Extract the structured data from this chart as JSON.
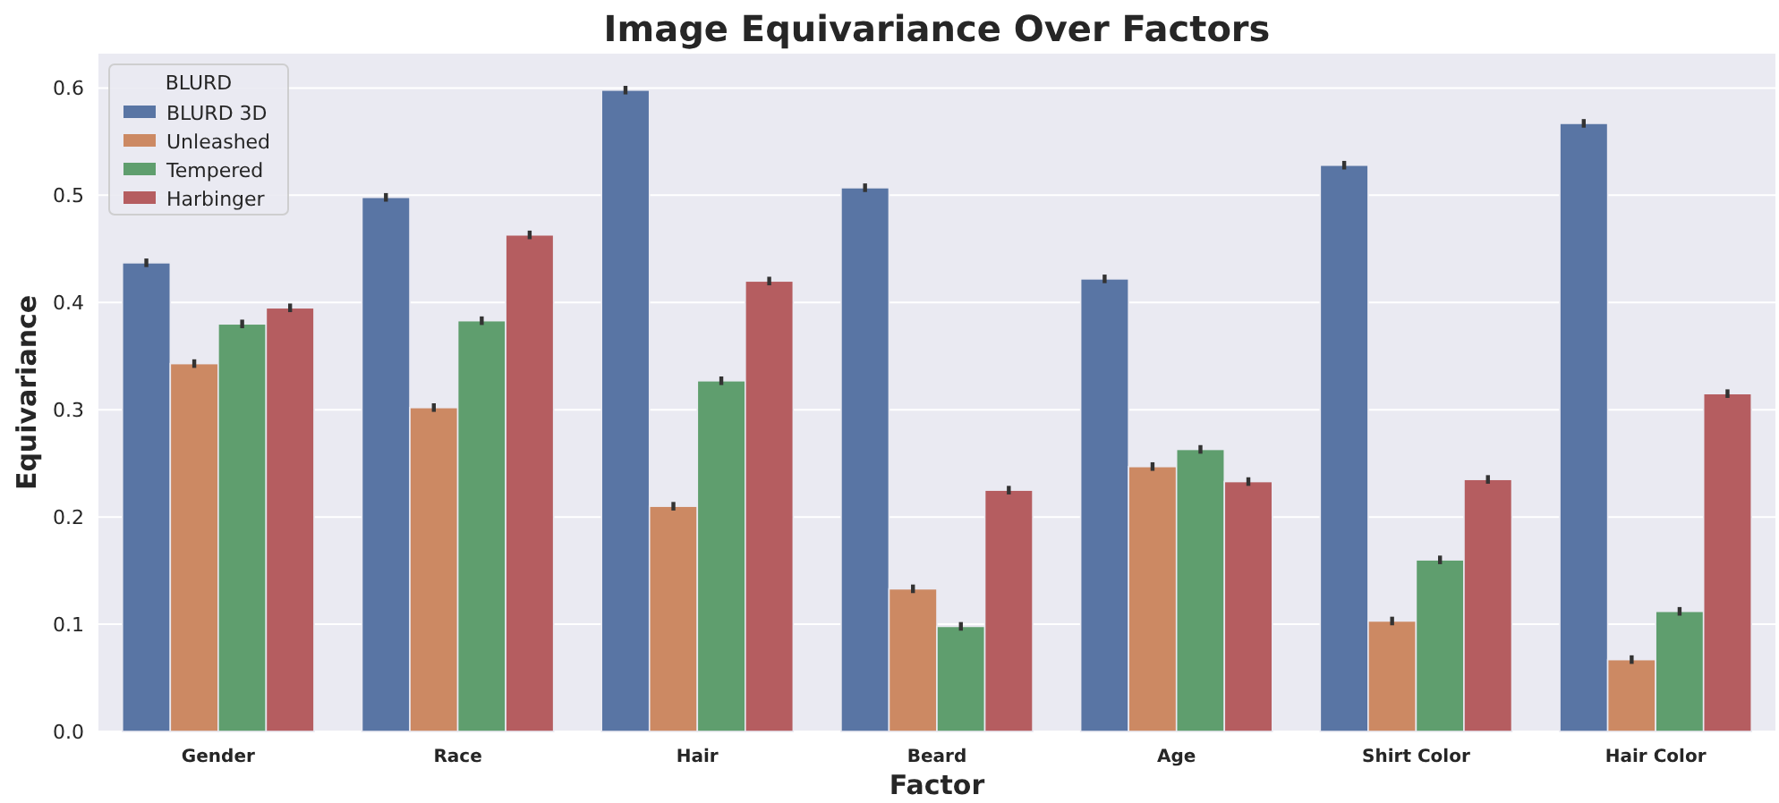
{
  "chart_data": {
    "type": "bar",
    "title": "Image Equivariance Over Factors",
    "xlabel": "Factor",
    "ylabel": "Equivariance",
    "legend_title": "BLURD",
    "categories": [
      "Gender",
      "Race",
      "Hair",
      "Beard",
      "Age",
      "Shirt Color",
      "Hair Color"
    ],
    "series": [
      {
        "name": "BLURD 3D",
        "color": "#5975a4",
        "values": [
          0.437,
          0.498,
          0.598,
          0.507,
          0.422,
          0.528,
          0.567
        ],
        "errors": [
          0.004,
          0.004,
          0.004,
          0.004,
          0.004,
          0.004,
          0.004
        ]
      },
      {
        "name": "Unleashed",
        "color": "#cc8963",
        "values": [
          0.343,
          0.302,
          0.21,
          0.133,
          0.247,
          0.103,
          0.067
        ],
        "errors": [
          0.004,
          0.004,
          0.004,
          0.004,
          0.004,
          0.004,
          0.004
        ]
      },
      {
        "name": "Tempered",
        "color": "#5f9e6e",
        "values": [
          0.38,
          0.383,
          0.327,
          0.098,
          0.263,
          0.16,
          0.112
        ],
        "errors": [
          0.004,
          0.004,
          0.004,
          0.004,
          0.004,
          0.004,
          0.004
        ]
      },
      {
        "name": "Harbinger",
        "color": "#b55d60",
        "values": [
          0.395,
          0.463,
          0.42,
          0.225,
          0.233,
          0.235,
          0.315
        ],
        "errors": [
          0.004,
          0.004,
          0.004,
          0.004,
          0.004,
          0.004,
          0.004
        ]
      }
    ],
    "ylim": [
      0,
      0.632
    ],
    "yticks": [
      {
        "value": 0,
        "label": "0.0"
      },
      0.1,
      0.2,
      0.3,
      0.4,
      0.5,
      0.6
    ],
    "grid": "y",
    "legend": "top left"
  }
}
